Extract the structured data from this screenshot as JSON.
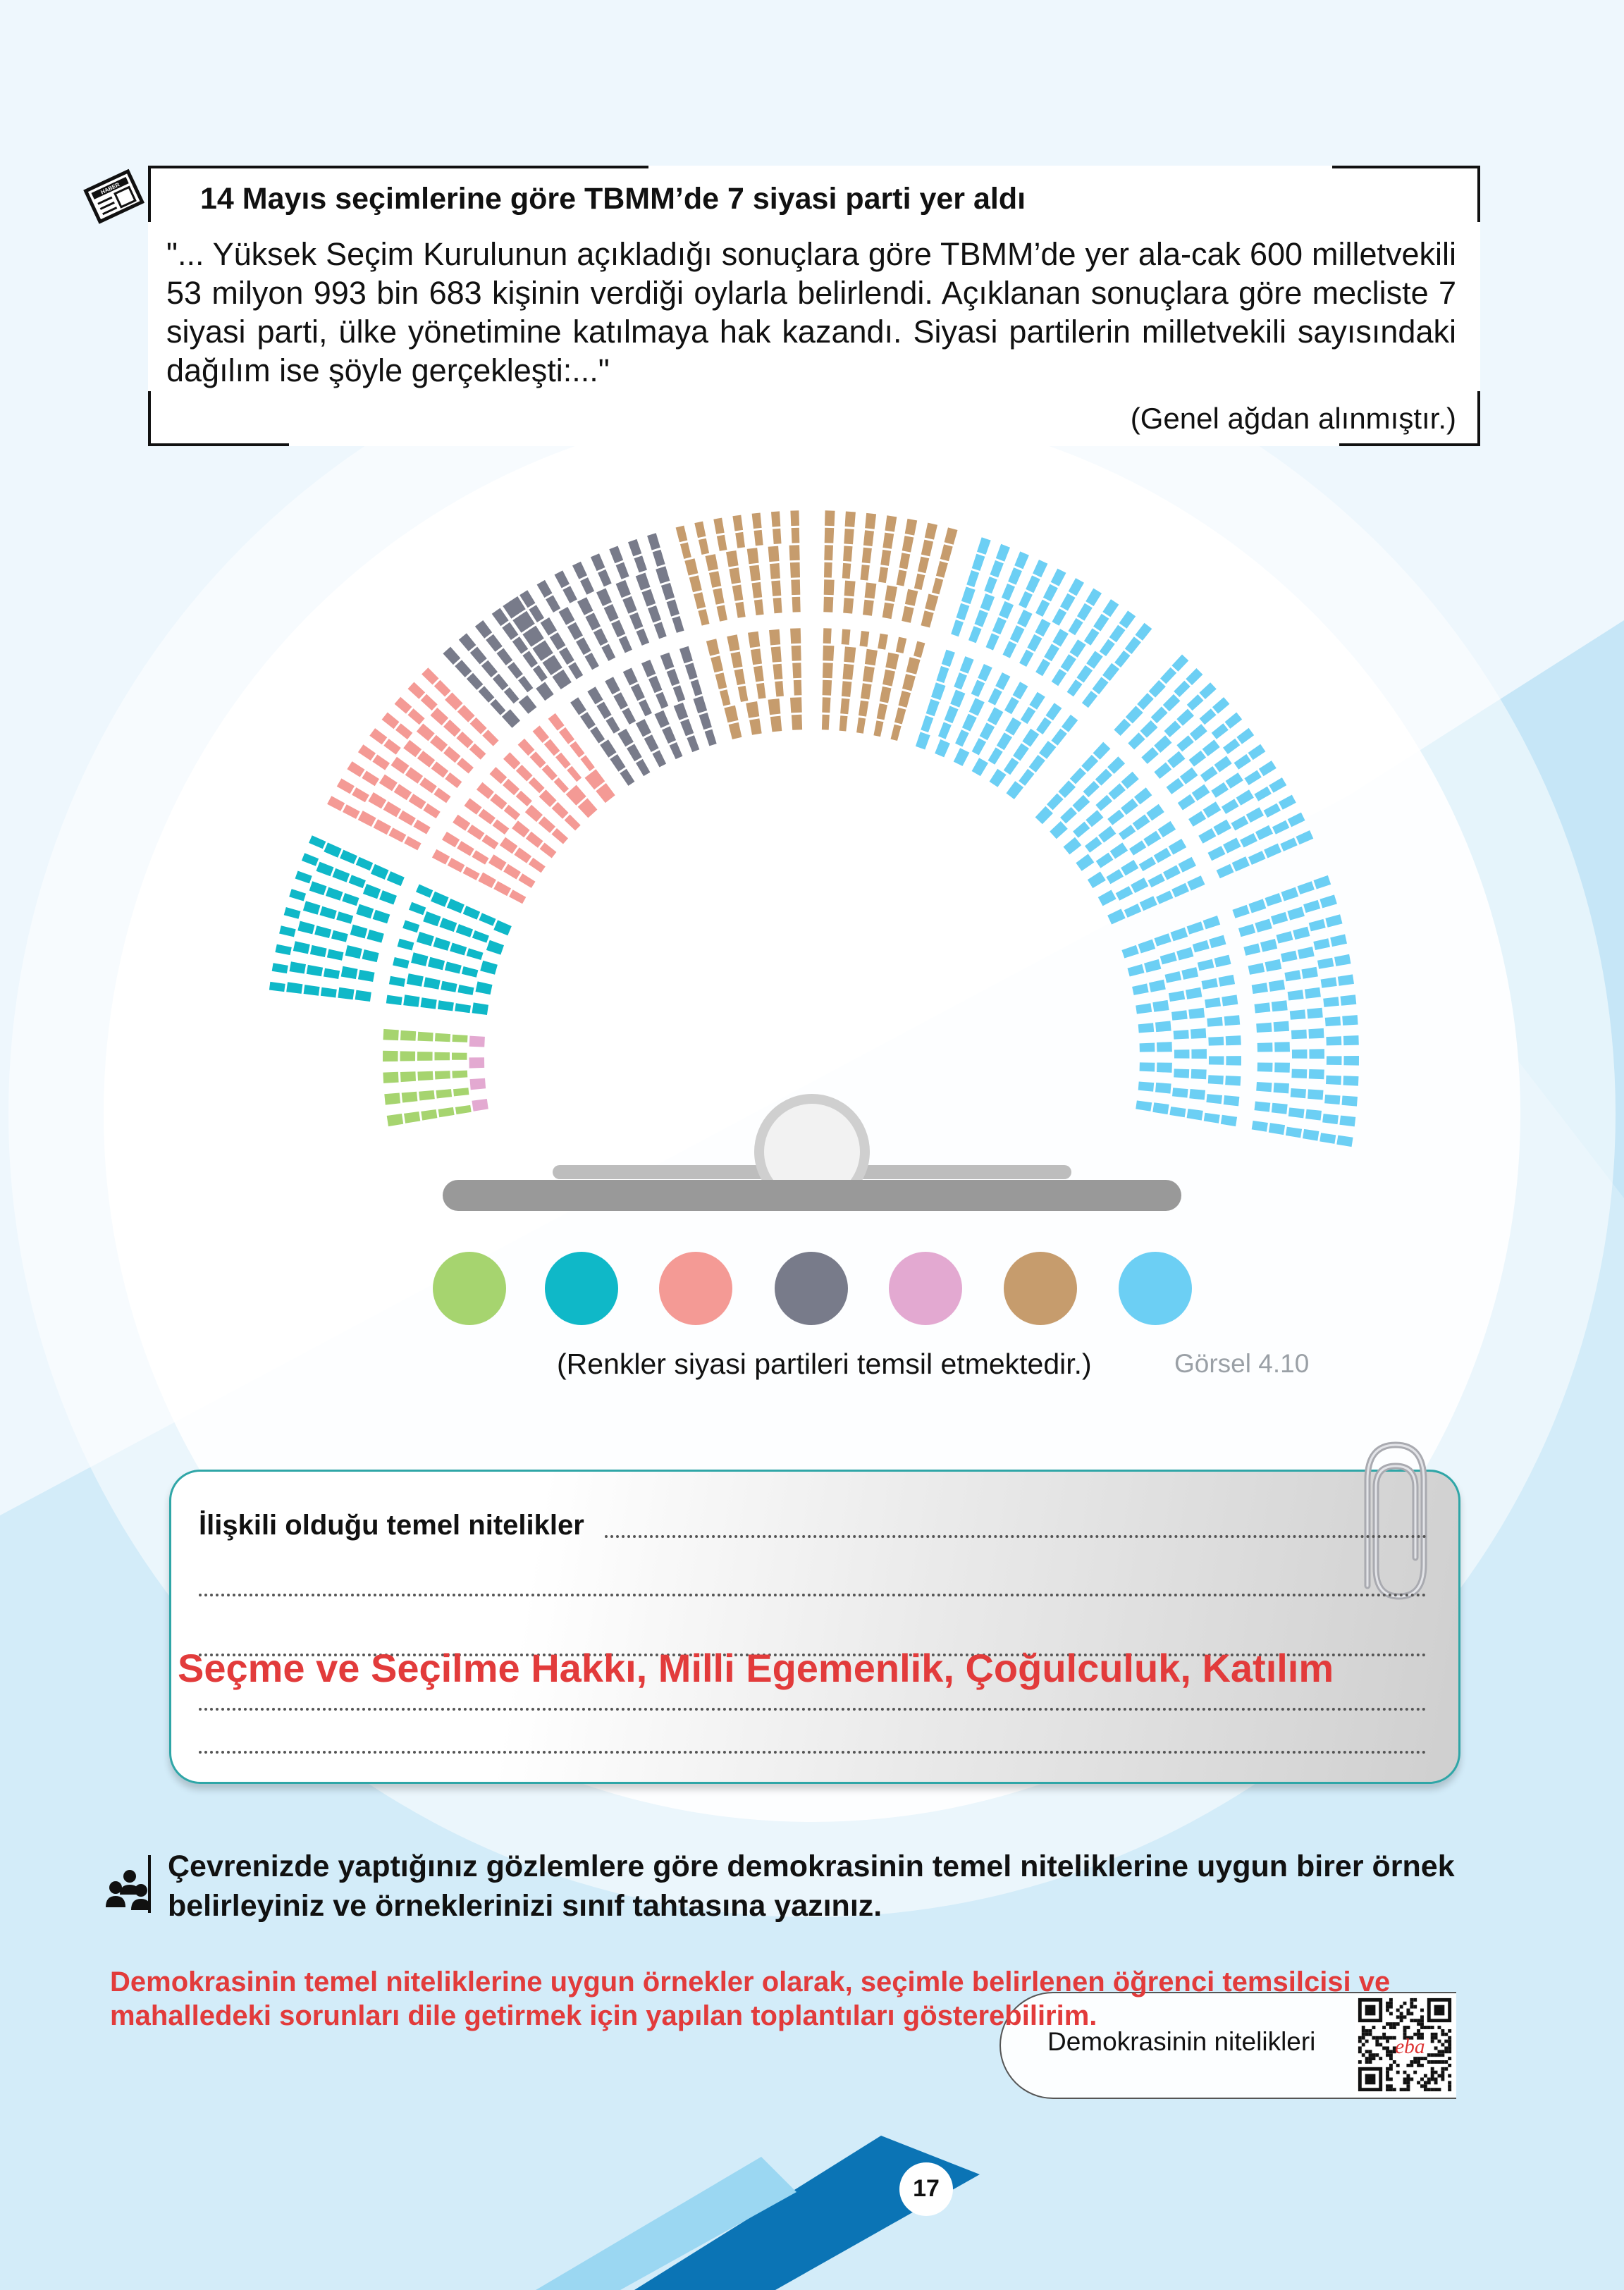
{
  "news": {
    "title": "14 Mayıs seçimlerine göre TBMM’de 7 siyasi parti yer aldı",
    "body": "\"... Yüksek Seçim Kurulunun açıkladığı sonuçlara göre TBMM’de yer ala-cak 600 milletvekili 53 milyon 993 bin 683 kişinin verdiği oylarla belirlendi. Açıklanan sonuçlara göre mecliste 7 siyasi parti, ülke yönetimine katılmaya hak kazandı. Siyasi partilerin milletvekili sayısındaki dağılım ise şöyle gerçekleşti:...\"",
    "source": "(Genel ağdan alınmıştır.)"
  },
  "figure": {
    "caption": "(Renkler siyasi partileri temsil etmektedir.)",
    "number": "Görsel 4.10",
    "parties": [
      {
        "color": "#a6d46f"
      },
      {
        "color": "#0fb8c8"
      },
      {
        "color": "#f49a95"
      },
      {
        "color": "#787b8a"
      },
      {
        "color": "#e3a9d1"
      },
      {
        "color": "#c69c6d"
      },
      {
        "color": "#6ccff4"
      }
    ]
  },
  "card": {
    "label": "İlişkili olduğu temel nitelikler",
    "answer": "Seçme ve Seçilme Hakkı, Milli Egemenlik, Çoğulculuk, Katılım"
  },
  "activity": {
    "text": "Çevrenizde yaptığınız gözlemlere göre demokrasinin temel niteliklerine uygun birer örnek belirleyiniz ve örneklerinizi sınıf tahtasına yazınız.",
    "answer": "Demokrasinin temel niteliklerine uygun örnekler olarak, seçimle belirlenen öğrenci temsilcisi ve mahalledeki sorunları dile getirmek için yapılan toplantıları gösterebilirim.",
    "qr_label": "Demokrasinin nitelikleri"
  },
  "page": {
    "number": "17"
  }
}
